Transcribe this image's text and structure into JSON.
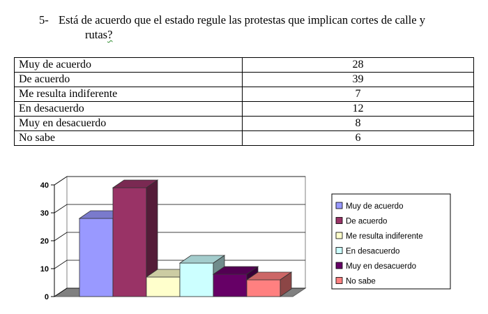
{
  "question": {
    "number": "5-",
    "line1": "Está de acuerdo que el estado regule las protestas que implican cortes de calle y",
    "line2_text": "rutas",
    "line2_mark": "?"
  },
  "table": {
    "rows": [
      {
        "label": "Muy de acuerdo",
        "value": "28"
      },
      {
        "label": "De acuerdo",
        "value": "39"
      },
      {
        "label": "Me resulta indiferente",
        "value": "7"
      },
      {
        "label": "En desacuerdo",
        "value": "12"
      },
      {
        "label": "Muy en desacuerdo",
        "value": "8"
      },
      {
        "label": "No sabe",
        "value": "6"
      }
    ]
  },
  "chart_data": {
    "type": "bar",
    "style": "3d",
    "categories": [
      "Muy de acuerdo",
      "De acuerdo",
      "Me resulta indiferente",
      "En desacuerdo",
      "Muy en desacuerdo",
      "No sabe"
    ],
    "values": [
      28,
      39,
      7,
      12,
      8,
      6
    ],
    "colors": [
      "#9999ff",
      "#993366",
      "#ffffcc",
      "#ccffff",
      "#660066",
      "#ff8080"
    ],
    "ylim": [
      0,
      40
    ],
    "yticks": [
      "0",
      "10",
      "20",
      "30",
      "40"
    ],
    "grid": true,
    "legend_position": "right",
    "title": "",
    "xlabel": "",
    "ylabel": ""
  }
}
